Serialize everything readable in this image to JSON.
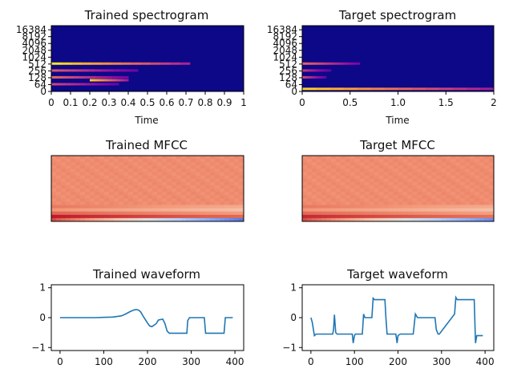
{
  "chart_data": [
    {
      "type": "heatmap",
      "panel": "spec_trained",
      "title": "Trained spectrogram",
      "xlabel": "Time",
      "ylabel": "",
      "xlim": [
        0,
        1
      ],
      "xticks": [
        0,
        0.1,
        0.2,
        0.3,
        0.4,
        0.5,
        0.6,
        0.7,
        0.8,
        0.9,
        1
      ],
      "xtick_labels": [
        "0",
        "0.1",
        "0.2",
        "0.3",
        "0.4",
        "0.5",
        "0.6",
        "0.7",
        "0.8",
        "0.9",
        "1"
      ],
      "yscale": "log2",
      "yticks": [
        0,
        64,
        128,
        256,
        512,
        1024,
        2048,
        4096,
        8192,
        16384
      ],
      "ytick_labels": [
        "0",
        "64",
        "128",
        "256",
        "512",
        "1024",
        "2048",
        "4096",
        "8192",
        "16384"
      ],
      "colormap": "plasma",
      "energy_bands": [
        {
          "freq": 512,
          "t0": 0.0,
          "t1": 0.72,
          "level": 0.95
        },
        {
          "freq": 256,
          "t0": 0.0,
          "t1": 0.45,
          "level": 0.55
        },
        {
          "freq": 128,
          "t0": 0.0,
          "t1": 0.4,
          "level": 0.6
        },
        {
          "freq": 96,
          "t0": 0.2,
          "t1": 0.4,
          "level": 0.9
        },
        {
          "freq": 64,
          "t0": 0.0,
          "t1": 0.35,
          "level": 0.5
        }
      ]
    },
    {
      "type": "heatmap",
      "panel": "spec_target",
      "title": "Target spectrogram",
      "xlabel": "Time",
      "ylabel": "",
      "xlim": [
        0,
        2
      ],
      "xticks": [
        0,
        0.5,
        1,
        1.5,
        2
      ],
      "xtick_labels": [
        "0",
        "0.5",
        "1.0",
        "1.5",
        "2"
      ],
      "yscale": "log2",
      "yticks": [
        0,
        64,
        128,
        256,
        512,
        1024,
        2048,
        4096,
        8192,
        16384
      ],
      "ytick_labels": [
        "0",
        "64",
        "128",
        "256",
        "512",
        "1024",
        "2048",
        "4096",
        "8192",
        "16384"
      ],
      "colormap": "plasma",
      "energy_bands": [
        {
          "freq": 512,
          "t0": 0.0,
          "t1": 0.6,
          "level": 0.6
        },
        {
          "freq": 256,
          "t0": 0.0,
          "t1": 0.3,
          "level": 0.45
        },
        {
          "freq": 128,
          "t0": 0.0,
          "t1": 0.25,
          "level": 0.5
        },
        {
          "freq": 20,
          "t0": 0.0,
          "t1": 2.0,
          "level": 0.9
        }
      ]
    },
    {
      "type": "heatmap",
      "panel": "mfcc_trained",
      "title": "Trained MFCC",
      "colormap": "coolwarm",
      "n_coeffs": 20,
      "base_level": 0.78,
      "bottom_rows": [
        0.97,
        0.86,
        0.76,
        0.82
      ],
      "lowest_row_gradient": {
        "start": 0.9,
        "end": 0.1
      }
    },
    {
      "type": "heatmap",
      "panel": "mfcc_target",
      "title": "Target MFCC",
      "colormap": "coolwarm",
      "n_coeffs": 20,
      "base_level": 0.78,
      "bottom_rows": [
        0.95,
        0.85,
        0.76,
        0.82
      ],
      "lowest_row_gradient": {
        "start": 0.9,
        "end": 0.15
      }
    },
    {
      "type": "line",
      "panel": "wave_trained",
      "title": "Trained waveform",
      "xlim": [
        -20,
        420
      ],
      "ylim": [
        -1.1,
        1.1
      ],
      "xticks": [
        0,
        100,
        200,
        300,
        400
      ],
      "yticks": [
        -1,
        0,
        1
      ],
      "color": "#1f77b4",
      "x": [
        0,
        40,
        80,
        120,
        140,
        150,
        160,
        170,
        175,
        180,
        185,
        190,
        200,
        205,
        210,
        220,
        225,
        235,
        240,
        245,
        250,
        253,
        258,
        290,
        292,
        296,
        300,
        330,
        333,
        336,
        375,
        378,
        385,
        395
      ],
      "y": [
        0,
        0,
        0,
        0.02,
        0.06,
        0.12,
        0.2,
        0.26,
        0.27,
        0.25,
        0.18,
        0.05,
        -0.18,
        -0.28,
        -0.3,
        -0.2,
        -0.08,
        -0.05,
        -0.2,
        -0.45,
        -0.52,
        -0.52,
        -0.52,
        -0.52,
        -0.1,
        0,
        0,
        0,
        -0.52,
        -0.52,
        -0.52,
        0,
        0,
        0
      ]
    },
    {
      "type": "line",
      "panel": "wave_target",
      "title": "Target waveform",
      "xlim": [
        -20,
        420
      ],
      "ylim": [
        -1.1,
        1.1
      ],
      "xticks": [
        0,
        100,
        200,
        300,
        400
      ],
      "yticks": [
        -1,
        0,
        1
      ],
      "color": "#1f77b4",
      "x": [
        0,
        3,
        8,
        12,
        50,
        52,
        54,
        57,
        60,
        95,
        97,
        100,
        102,
        118,
        121,
        124,
        140,
        143,
        146,
        150,
        170,
        172,
        175,
        195,
        198,
        200,
        205,
        235,
        240,
        245,
        285,
        288,
        292,
        295,
        330,
        333,
        336,
        340,
        375,
        378,
        381,
        385,
        395
      ],
      "y": [
        0,
        -0.15,
        -0.6,
        -0.55,
        -0.55,
        -0.4,
        0.1,
        -0.5,
        -0.55,
        -0.55,
        -0.85,
        -0.6,
        -0.55,
        -0.55,
        0.12,
        0,
        0,
        0.65,
        0.6,
        0.6,
        0.6,
        0.05,
        -0.55,
        -0.55,
        -0.85,
        -0.6,
        -0.55,
        -0.55,
        0.12,
        0,
        0,
        -0.4,
        -0.55,
        -0.55,
        0.12,
        0.68,
        0.6,
        0.6,
        0.6,
        -0.85,
        -0.6,
        -0.6,
        -0.6
      ]
    }
  ]
}
